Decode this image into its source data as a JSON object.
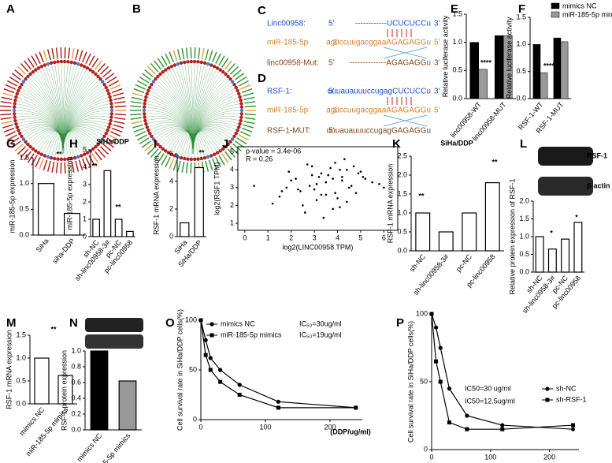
{
  "network_panels": [
    "A",
    "B"
  ],
  "sequences": [
    {
      "panel": "C",
      "lines": [
        {
          "name": "Linc00958:",
          "p5": "5'",
          "seq": "------------UCUCUCCu",
          "p3": "3'",
          "color": "#1f4fd8"
        },
        {
          "name": "miR-185-5p",
          "p5": ": 3'",
          "seq": "aguccuugacggaaAGAGAGGu",
          "p3": "5'",
          "color": "#d9822b"
        },
        {
          "name": "linc00958-Mut:",
          "p5": "5'",
          "seq": "--------------AGAGAGGu",
          "p3": "3'",
          "color": "#8b4513"
        }
      ]
    },
    {
      "panel": "D",
      "lines": [
        {
          "name": "RSF-1:",
          "p5": "5'",
          "seq": "uuuauauuuccugagCUCUCCu",
          "p3": "3'",
          "color": "#1f4fd8"
        },
        {
          "name": "miR-185-5p",
          "p5": ": 3'",
          "seq": "aguccuugacggaaAGAGAGGu",
          "p3": "5'",
          "color": "#d9822b"
        },
        {
          "name": "RSF-1-MUT:",
          "p5": "5'",
          "seq": "uuuauauuuccugagGAGAGGu",
          "p3": "",
          "color": "#8b4513"
        }
      ]
    }
  ],
  "chart_data": [
    {
      "panel": "E",
      "type": "bar",
      "categories": [
        "linc00958-WT",
        "linc00958-MUT"
      ],
      "series": [
        {
          "color": "#000000",
          "values": [
            1.0,
            1.12
          ]
        },
        {
          "color": "#999999",
          "values": [
            0.52,
            1.12
          ]
        }
      ],
      "y_label": "Relative luciferase activity",
      "ylim": [
        0,
        1.5
      ],
      "yticks": [
        {
          "value": 0,
          "label": "0.0"
        },
        {
          "value": 0.5,
          "label": "0.5"
        },
        {
          "value": 1,
          "label": "1.0"
        },
        {
          "value": 1.5,
          "label": "1.5"
        }
      ],
      "annotations": [
        "****"
      ]
    },
    {
      "panel": "F",
      "type": "bar",
      "categories": [
        "RSF-1-WT",
        "RSF-1-MUT"
      ],
      "series": [
        {
          "name": "mimics NC",
          "color": "#000000",
          "values": [
            1.0,
            1.12
          ]
        },
        {
          "name": "miR-185-5p mimics",
          "color": "#999999",
          "values": [
            0.48,
            1.05
          ]
        }
      ],
      "y_label": "Relative luciferase activity",
      "ylim": [
        0,
        1.5
      ],
      "yticks": [
        {
          "value": 0,
          "label": "0.0"
        },
        {
          "value": 0.5,
          "label": "0.5"
        },
        {
          "value": 1,
          "label": "1.0"
        },
        {
          "value": 1.5,
          "label": "1.5"
        }
      ],
      "annotations": [
        "****"
      ]
    },
    {
      "panel": "G",
      "type": "bar",
      "categories": [
        "SiHa",
        "siha-DDP"
      ],
      "values": [
        1.0,
        0.42
      ],
      "color": "#ffffff",
      "y_label": "miR-185-5p expression",
      "ylim": [
        0,
        1.5
      ],
      "yticks": [
        {
          "value": 0,
          "label": "0.0"
        },
        {
          "value": 0.5,
          "label": "0.5"
        },
        {
          "value": 1,
          "label": "1.0"
        },
        {
          "value": 1.5,
          "label": "1.5"
        }
      ],
      "annotations": [
        "**"
      ]
    },
    {
      "panel": "H",
      "type": "bar",
      "title": "SiHa/DDP",
      "categories": [
        "sh-NC",
        "sh-linc00958-3#",
        "pc-NC",
        "pc-linc00958"
      ],
      "values": [
        1.0,
        3.8,
        1.0,
        0.3
      ],
      "color": "#ffffff",
      "y_label": "miR-185-5p expression",
      "ylim": [
        0,
        5
      ],
      "yticks": [
        0,
        1,
        2,
        3,
        4,
        5
      ],
      "annotations": [
        "**",
        "**"
      ]
    },
    {
      "panel": "I",
      "type": "bar",
      "categories": [
        "SiHa",
        "SiHa/DDP"
      ],
      "values": [
        1.0,
        5.0
      ],
      "color": "#ffffff",
      "y_label": "RSF-1 mRNA expression",
      "ylim": [
        0,
        6
      ],
      "yticks": [
        0,
        2,
        4,
        6
      ],
      "annotations": [
        "**"
      ]
    },
    {
      "panel": "J",
      "type": "scatter",
      "x_label": "log2(LINC00958 TPM)",
      "y_label": "log2(RSF1 TPM)",
      "annotations": [
        "p-value = 3.4e-06",
        "R = 0.26"
      ],
      "xlim": [
        -0.3,
        6.6
      ],
      "xticks": [
        0,
        1,
        2,
        3,
        4,
        5,
        6
      ],
      "ylim": [
        0.6,
        5.3
      ],
      "yticks": [
        1,
        2,
        3,
        4,
        5
      ],
      "color": "#000000",
      "x": [
        3.1,
        2.4,
        4.2,
        3.8,
        1.5,
        5.0,
        2.9,
        3.5,
        4.6,
        2.2,
        3.9,
        4.4,
        1.8,
        3.3,
        5.5,
        2.6,
        4.1,
        3.0,
        4.8,
        2.0,
        3.6,
        4.3,
        1.2,
        3.4,
        5.2,
        2.8,
        4.0,
        3.7,
        4.9,
        2.5,
        3.2,
        4.5,
        1.9,
        3.9,
        5.8,
        2.7,
        4.2,
        3.1,
        4.7,
        2.3,
        0.4,
        3.5,
        4.1,
        6.0,
        2.9,
        3.8,
        4.4,
        1.6,
        3.3,
        5.1
      ],
      "values": [
        3.2,
        2.8,
        3.6,
        1.8,
        2.5,
        3.9,
        4.2,
        2.6,
        3.1,
        3.5,
        4.4,
        2.2,
        3.0,
        3.8,
        3.3,
        1.6,
        4.0,
        2.9,
        2.7,
        3.4,
        3.7,
        4.6,
        2.1,
        1.3,
        3.5,
        3.1,
        2.4,
        4.1,
        3.8,
        2.0,
        3.6,
        3.0,
        3.9,
        2.7,
        3.2,
        4.3,
        3.4,
        2.3,
        4.2,
        2.9,
        3.1,
        3.3,
        1.9,
        3.0,
        3.7,
        3.5,
        4.0,
        2.8,
        2.6,
        3.6
      ]
    },
    {
      "panel": "K",
      "type": "bar",
      "title": "SiHa/DDP",
      "categories": [
        "sh-NC",
        "sh-linc00958-3#",
        "pc-NC",
        "pc-linc00958"
      ],
      "values": [
        1.0,
        0.5,
        1.0,
        1.8
      ],
      "color": "#ffffff",
      "y_label": "RSF-1 mRNA expression",
      "ylim": [
        0,
        2.5
      ],
      "yticks": [
        {
          "value": 0,
          "label": "0.0"
        },
        {
          "value": 0.5,
          "label": "0.5"
        },
        {
          "value": 1,
          "label": "1.0"
        },
        {
          "value": 1.5,
          "label": "1.5"
        },
        {
          "value": 2,
          "label": "2.0"
        },
        {
          "value": 2.5,
          "label": "2.5"
        }
      ],
      "annotations": [
        "**",
        "**"
      ]
    },
    {
      "panel": "L",
      "type": "bar",
      "blot_labels": [
        "RSF-1",
        "β-actin"
      ],
      "categories": [
        "sh-NC",
        "sh-linc0958-3#",
        "pc-NC",
        "pc-linc00958"
      ],
      "values": [
        1.0,
        0.65,
        0.93,
        1.4
      ],
      "color": "#ffffff",
      "y_label": "Relative protein expression of RSF-1",
      "ylim": [
        0,
        2
      ],
      "yticks": [
        {
          "value": 0,
          "label": "0.0"
        },
        {
          "value": 0.5,
          "label": "0.5"
        },
        {
          "value": 1,
          "label": "1.0"
        },
        {
          "value": 1.5,
          "label": "1.5"
        },
        {
          "value": 2,
          "label": "2.0"
        }
      ],
      "annotations": [
        "*",
        "*"
      ]
    },
    {
      "panel": "M",
      "type": "bar",
      "categories": [
        "mimics NC",
        "miR-185-5p mimics"
      ],
      "values": [
        1.0,
        0.62
      ],
      "color": "#ffffff",
      "y_label": "RSF-1 mRNA expression",
      "ylim": [
        0,
        1.5
      ],
      "yticks": [
        {
          "value": 0,
          "label": "0.0"
        },
        {
          "value": 0.5,
          "label": "0.5"
        },
        {
          "value": 1,
          "label": "1.0"
        },
        {
          "value": 1.5,
          "label": "1.5"
        }
      ],
      "annotations": [
        "**"
      ]
    },
    {
      "panel": "N",
      "type": "bar",
      "categories": [
        "mimics NC",
        "miR-185-5p mimics"
      ],
      "values": [
        1.0,
        0.62
      ],
      "colors": [
        "#000000",
        "#999999"
      ],
      "y_label": "RSF-1 protein expression",
      "ylim": [
        0,
        1
      ],
      "yticks": [
        {
          "value": 0,
          "label": "0.0"
        },
        {
          "value": 0.2,
          "label": "0.2"
        },
        {
          "value": 0.4,
          "label": "0.4"
        },
        {
          "value": 0.6,
          "label": "0.6"
        },
        {
          "value": 0.8,
          "label": "0.8"
        },
        {
          "value": 1,
          "label": "1.0"
        }
      ],
      "annotations": [
        "*"
      ]
    },
    {
      "panel": "O",
      "type": "line",
      "x": [
        0,
        7.5,
        15,
        30,
        60,
        120,
        240
      ],
      "series": [
        {
          "name": "mimics NC",
          "marker": "circle",
          "color": "#000000",
          "values": [
            100,
            80,
            62,
            50,
            35,
            18,
            12
          ]
        },
        {
          "name": "miR-185-5p mimics",
          "marker": "square",
          "color": "#000000",
          "values": [
            100,
            65,
            50,
            38,
            25,
            12,
            12
          ]
        }
      ],
      "annotations": [
        "IC₅₀=30ug/ml",
        "IC₅₀=19ug/ml"
      ],
      "y_label": "Cell survival rate in SiHa/DDP cells(%)",
      "x_label": "(DDP/ug/ml)",
      "xlim": [
        0,
        250
      ],
      "xticks": [
        0,
        100,
        200
      ],
      "ylim": [
        0,
        100
      ],
      "yticks": [
        0,
        50,
        100
      ]
    },
    {
      "panel": "P",
      "type": "line",
      "x": [
        0,
        7.5,
        15,
        30,
        60,
        120,
        240
      ],
      "series": [
        {
          "name": "sh-NC",
          "marker": "circle",
          "color": "#000000",
          "values": [
            100,
            90,
            75,
            45,
            25,
            18,
            15
          ]
        },
        {
          "name": "sh-RSF-1",
          "marker": "square",
          "color": "#000000",
          "values": [
            100,
            65,
            50,
            20,
            15,
            15,
            18
          ]
        }
      ],
      "annotations": [
        "IC50=30 ug/ml",
        "IC50=12.5ug/ml"
      ],
      "y_label": "Cell survival rate in SiHa/DDP cells(%)",
      "xlim": [
        0,
        250
      ],
      "xticks": [
        0,
        100,
        200
      ],
      "ylim": [
        0,
        100
      ],
      "yticks": [
        0,
        50,
        100
      ]
    }
  ]
}
